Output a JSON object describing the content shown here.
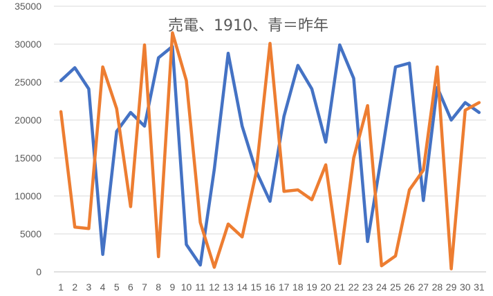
{
  "chart_data": {
    "type": "line",
    "title": "売電、1910、青＝昨年",
    "xlabel": "",
    "ylabel": "",
    "categories": [
      "1",
      "2",
      "3",
      "4",
      "5",
      "6",
      "7",
      "8",
      "9",
      "10",
      "11",
      "12",
      "13",
      "14",
      "15",
      "16",
      "17",
      "18",
      "19",
      "20",
      "21",
      "22",
      "23",
      "24",
      "25",
      "26",
      "27",
      "28",
      "29",
      "30",
      "31"
    ],
    "y_ticks": [
      "0",
      "5000",
      "10000",
      "15000",
      "20000",
      "25000",
      "30000",
      "35000"
    ],
    "ylim": [
      0,
      35000
    ],
    "grid": true,
    "legend": "none",
    "series": [
      {
        "color": "#4472c4",
        "values": [
          25200,
          26900,
          24100,
          2300,
          18500,
          21000,
          19200,
          28200,
          29700,
          3600,
          900,
          13500,
          28800,
          19200,
          13300,
          9300,
          20500,
          27200,
          24100,
          17100,
          29900,
          25500,
          4000,
          15300,
          27000,
          27500,
          9400,
          24300,
          20000,
          22300,
          21000
        ]
      },
      {
        "color": "#ed7d31",
        "values": [
          21100,
          5900,
          5700,
          27000,
          21500,
          8600,
          29900,
          2000,
          31500,
          25200,
          6500,
          600,
          6300,
          4600,
          13000,
          30100,
          10600,
          10800,
          9500,
          14100,
          1100,
          15000,
          21900,
          800,
          2100,
          10800,
          13400,
          27000,
          400,
          21300,
          22300
        ]
      }
    ]
  }
}
